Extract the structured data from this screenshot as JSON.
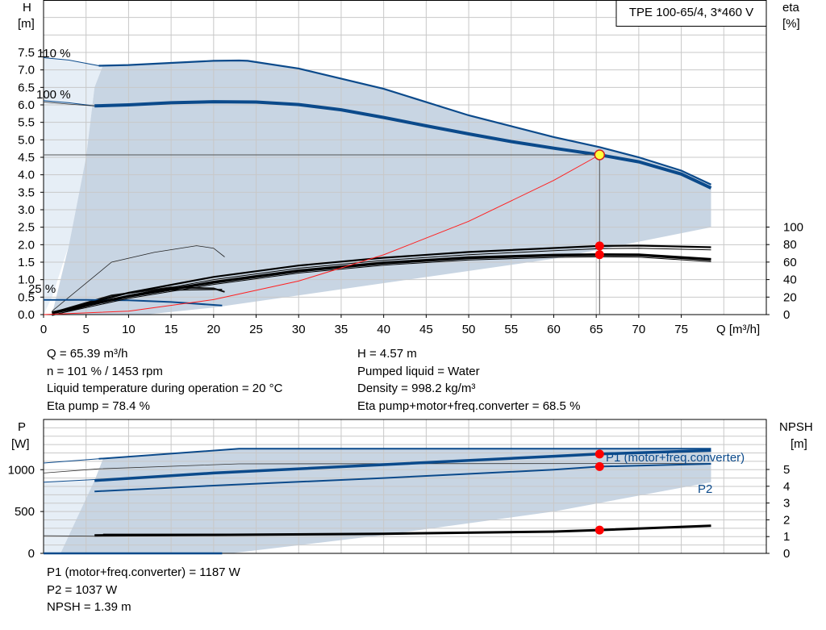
{
  "chart_data": [
    {
      "type": "line",
      "title": "TPE 100-65/4, 3*460 V",
      "xlabel": "Q [m³/h]",
      "ylabel": "H\n[m]",
      "y2label": "eta\n[%]",
      "xlim": [
        0,
        85
      ],
      "ylim": [
        0,
        9
      ],
      "y2lim": [
        0,
        100
      ],
      "grid": true,
      "x_ticks": [
        "0",
        "5",
        "10",
        "15",
        "20",
        "25",
        "30",
        "35",
        "40",
        "45",
        "50",
        "55",
        "60",
        "65",
        "70",
        "75"
      ],
      "y_ticks": [
        "0.0",
        "0.5",
        "1.0",
        "1.5",
        "2.0",
        "2.5",
        "3.0",
        "3.5",
        "4.0",
        "4.5",
        "5.0",
        "5.5",
        "6.0",
        "6.5",
        "7.0",
        "7.5"
      ],
      "y2_ticks": [
        "0",
        "20",
        "40",
        "60",
        "80",
        "100"
      ],
      "curve_labels": [
        "110 %",
        "100 %",
        "25 %"
      ],
      "series": [
        {
          "name": "110 %",
          "x": [
            6.5,
            10,
            15,
            20,
            23,
            24,
            30,
            40,
            50,
            60,
            65.4,
            70,
            75,
            78.5
          ],
          "y": [
            7.12,
            7.14,
            7.2,
            7.26,
            7.27,
            7.26,
            7.04,
            6.46,
            5.7,
            5.08,
            4.79,
            4.5,
            4.12,
            3.72
          ]
        },
        {
          "name": "100 %",
          "x": [
            6,
            10,
            15,
            20,
            25,
            30,
            35,
            40,
            45,
            50,
            55,
            60,
            65.39,
            70,
            75,
            78.5
          ],
          "y": [
            5.97,
            6.0,
            6.06,
            6.09,
            6.08,
            6.01,
            5.86,
            5.64,
            5.4,
            5.17,
            4.95,
            4.76,
            4.57,
            4.37,
            4.02,
            3.62
          ]
        },
        {
          "name": "25 %",
          "x": [
            0,
            5,
            10,
            15,
            21
          ],
          "y": [
            0.42,
            0.42,
            0.41,
            0.36,
            0.26
          ]
        },
        {
          "name": "System curve",
          "x": [
            0,
            10,
            20,
            30,
            40,
            50,
            60,
            65.39
          ],
          "y": [
            0,
            0.1,
            0.43,
            0.96,
            1.71,
            2.67,
            3.84,
            4.57
          ]
        },
        {
          "name": "Eta pump",
          "unit": "%",
          "x": [
            1,
            10,
            20,
            30,
            40,
            50,
            60,
            65.39,
            70,
            78.5
          ],
          "y": [
            2,
            25,
            43,
            56,
            65,
            71.5,
            76,
            78.4,
            78.8,
            77
          ]
        },
        {
          "name": "Eta pump+motor+freq.converter",
          "unit": "%",
          "x": [
            1,
            10,
            20,
            30,
            40,
            50,
            60,
            65.39,
            70,
            78.5
          ],
          "y": [
            2,
            21,
            37,
            50,
            59,
            65,
            67.8,
            68.5,
            68.2,
            63
          ]
        }
      ],
      "operating_point": {
        "Q": 65.39,
        "H": 4.57,
        "eta_pump": 78.4,
        "eta_total": 68.5
      }
    },
    {
      "type": "line",
      "xlabel": "Q [m³/h]",
      "ylabel": "P\n[W]",
      "y2label": "NPSH\n[m]",
      "xlim": [
        0,
        85
      ],
      "ylim": [
        0,
        1600
      ],
      "y2lim": [
        0,
        7.5
      ],
      "grid": true,
      "y_ticks": [
        "0",
        "500",
        "1000"
      ],
      "y2_ticks": [
        "0",
        "1",
        "2",
        "3",
        "4",
        "5"
      ],
      "series": [
        {
          "name": "P1 (motor+freq.converter)",
          "unit": "W",
          "x": [
            6,
            20,
            40,
            60,
            65.39,
            78.5
          ],
          "y": [
            870,
            960,
            1060,
            1160,
            1187,
            1230
          ]
        },
        {
          "name": "P2",
          "unit": "W",
          "x": [
            6,
            20,
            40,
            60,
            65.39,
            78.5
          ],
          "y": [
            740,
            810,
            900,
            1000,
            1037,
            1070
          ]
        },
        {
          "name": "NPSH",
          "unit": "m",
          "x": [
            6,
            20,
            40,
            60,
            65.39,
            78.5
          ],
          "y": [
            1.07,
            1.1,
            1.17,
            1.3,
            1.39,
            1.65
          ]
        }
      ],
      "series_labels": [
        "P1 (motor+freq.converter)",
        "P2"
      ],
      "operating_point": {
        "Q": 65.39,
        "P1": 1187,
        "P2": 1037,
        "NPSH": 1.39
      }
    }
  ],
  "info_top_left": [
    "Q = 65.39 m³/h",
    "n = 101 % / 1453 rpm",
    "Liquid temperature during operation = 20 °C",
    "Eta pump = 78.4 %"
  ],
  "info_top_right": [
    "H = 4.57 m",
    "Pumped liquid = Water",
    "Density = 998.2 kg/m³",
    "Eta pump+motor+freq.converter = 68.5 %"
  ],
  "info_bottom": [
    "P1 (motor+freq.converter) = 1187 W",
    "P2 = 1037 W",
    "NPSH = 1.39 m"
  ],
  "colors": {
    "curve_blue": "#0b4a8b",
    "area_fill": "#c8d5e3",
    "light_fill": "#e6eef6",
    "duty_point": "#ff0000",
    "system_curve": "#ff2020",
    "grid": "#c8c8c8"
  }
}
